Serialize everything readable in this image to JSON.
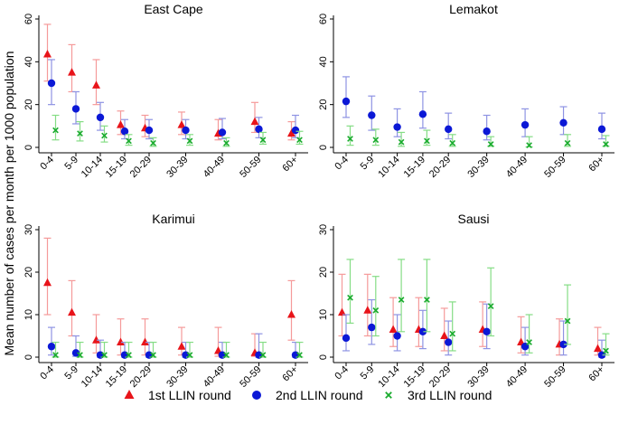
{
  "chart_data": {
    "type": "scatter",
    "ylabel": "Mean number of cases per month per 1000 population",
    "categories": [
      "0-4",
      "5-9",
      "10-14",
      "15-19",
      "20-29",
      "30-39",
      "40-49",
      "50-59",
      "60+"
    ],
    "x": [
      0,
      1,
      2,
      3,
      4,
      5.5,
      7,
      8.5,
      10
    ],
    "legend": [
      {
        "name": "1st LLIN round",
        "marker": "triangle",
        "color": "#e8141a"
      },
      {
        "name": "2nd LLIN round",
        "marker": "circle",
        "color": "#0b18d6"
      },
      {
        "name": "3rd LLIN round",
        "marker": "x",
        "color": "#1aab2e"
      }
    ],
    "errorbar_colors": [
      "#f59a9a",
      "#8e93e3",
      "#85dd85"
    ],
    "panels": [
      {
        "title": "East Cape",
        "ylim": [
          0,
          60
        ],
        "yticks": [
          0,
          20,
          40,
          60
        ],
        "series": [
          {
            "name": "1st LLIN round",
            "values": [
              43.5,
              35,
              29,
              10.5,
              9,
              10.5,
              6.5,
              12,
              6.5
            ],
            "lower": [
              31,
              26,
              20,
              6,
              5,
              6,
              3.5,
              7,
              3.5
            ],
            "upper": [
              57.5,
              48,
              41,
              17,
              15,
              16.5,
              13,
              21,
              12
            ]
          },
          {
            "name": "2nd LLIN round",
            "values": [
              30,
              18,
              14,
              7.5,
              8,
              8,
              7,
              8.5,
              8
            ],
            "lower": [
              20,
              11,
              8,
              4,
              4,
              4,
              4,
              4.5,
              4.5
            ],
            "upper": [
              41,
              26,
              21,
              13,
              13,
              13,
              13.5,
              14,
              15
            ]
          },
          {
            "name": "3rd LLIN round",
            "values": [
              8,
              6.5,
              5.5,
              3,
              2,
              3,
              2,
              3.5,
              3.5
            ],
            "lower": [
              3.5,
              3,
              2.5,
              1,
              0.5,
              1,
              0.5,
              1.5,
              1.5
            ],
            "upper": [
              15,
              12,
              10,
              6,
              4.5,
              6,
              4.5,
              7,
              7.5
            ]
          }
        ]
      },
      {
        "title": "Lemakot",
        "ylim": [
          0,
          60
        ],
        "yticks": [
          0,
          20,
          40,
          60
        ],
        "series": [
          {
            "name": "2nd LLIN round",
            "values": [
              21.5,
              15,
              9.5,
              15.5,
              8.5,
              7.5,
              10.5,
              11.5,
              8.5
            ],
            "lower": [
              14,
              8,
              5,
              9,
              4,
              3.5,
              5,
              6,
              4
            ],
            "upper": [
              33,
              24,
              18,
              26,
              16,
              15,
              18,
              19,
              16
            ]
          },
          {
            "name": "3rd LLIN round",
            "values": [
              4,
              3.5,
              2.5,
              3,
              2,
              1.5,
              1,
              2,
              1.5
            ],
            "lower": [
              1,
              1,
              0.5,
              1,
              0.5,
              0.5,
              0.2,
              0.5,
              0.5
            ],
            "upper": [
              10,
              8.5,
              7,
              8,
              6,
              5,
              5,
              6,
              5.5
            ]
          }
        ]
      },
      {
        "title": "Karimui",
        "ylim": [
          0,
          30
        ],
        "yticks": [
          0,
          10,
          20,
          30
        ],
        "series": [
          {
            "name": "1st LLIN round",
            "values": [
              17.5,
              10.5,
              4,
              3.5,
              3.5,
              2.5,
              1.5,
              1,
              10
            ],
            "lower": [
              10,
              5,
              1,
              0.5,
              0.5,
              0.5,
              0.2,
              0.2,
              4
            ],
            "upper": [
              28,
              18,
              10,
              9,
              9,
              7,
              7,
              5.5,
              18
            ]
          },
          {
            "name": "2nd LLIN round",
            "values": [
              2.5,
              1,
              0.5,
              0.5,
              0.5,
              0.5,
              0.5,
              0.5,
              0.5
            ],
            "lower": [
              0.5,
              0.2,
              0,
              0,
              0,
              0,
              0,
              0,
              0
            ],
            "upper": [
              7,
              5,
              4,
              3.5,
              3.5,
              3.5,
              3.5,
              5.5,
              3.5
            ]
          },
          {
            "name": "3rd LLIN round",
            "values": [
              0.5,
              0.5,
              0.5,
              0.5,
              0.5,
              0.5,
              0.5,
              0.5,
              0.5
            ],
            "lower": [
              0,
              0,
              0,
              0,
              0,
              0,
              0,
              0,
              0
            ],
            "upper": [
              3.5,
              3.5,
              3.5,
              3.5,
              3.5,
              3.5,
              3.5,
              3.5,
              3.5
            ]
          }
        ]
      },
      {
        "title": "Sausi",
        "ylim": [
          0,
          30
        ],
        "yticks": [
          0,
          10,
          20,
          30
        ],
        "series": [
          {
            "name": "1st LLIN round",
            "values": [
              10.5,
              11,
              6.5,
              6.5,
              5,
              6.5,
              3.5,
              3,
              2
            ],
            "lower": [
              5,
              5,
              2.5,
              2.5,
              1.5,
              2.5,
              1,
              0.5,
              0.5
            ],
            "upper": [
              19.5,
              19.5,
              14,
              14,
              11.5,
              13,
              9.5,
              9,
              7
            ]
          },
          {
            "name": "2nd LLIN round",
            "values": [
              4.5,
              7,
              5,
              6,
              3.5,
              6,
              2.5,
              3,
              0.5
            ],
            "lower": [
              1.5,
              3,
              1.5,
              2,
              0.5,
              2,
              0.5,
              0.5,
              0
            ],
            "upper": [
              10,
              13.5,
              10,
              11,
              8.5,
              12.5,
              7,
              8.5,
              4
            ]
          },
          {
            "name": "3rd LLIN round",
            "values": [
              14,
              11,
              13.5,
              13.5,
              5.5,
              12,
              3.5,
              8.5,
              1.5
            ],
            "lower": [
              8,
              5,
              6,
              6,
              1.5,
              5,
              1,
              3,
              0.5
            ],
            "upper": [
              23,
              19,
              23,
              23,
              13,
              21,
              10,
              17,
              5.5
            ]
          }
        ]
      }
    ]
  }
}
